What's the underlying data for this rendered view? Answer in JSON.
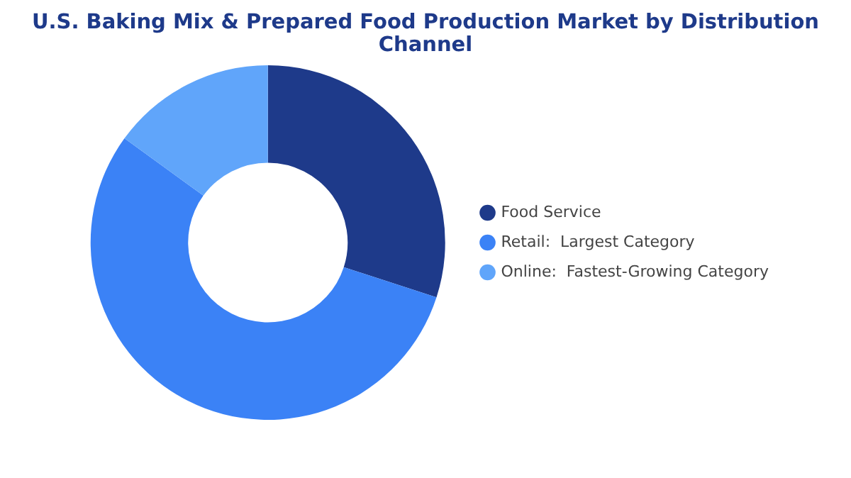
{
  "chart_data": {
    "type": "donut",
    "title": "U.S. Baking Mix & Prepared Food Production Market by Distribution Channel",
    "categories": [
      "Food Service",
      "Retail:  Largest Category",
      "Online:  Fastest-Growing Category"
    ],
    "values": [
      30,
      55,
      15
    ],
    "colors": [
      "#1e3a8a",
      "#3b82f6",
      "#60a5fa"
    ],
    "legend": "right"
  }
}
